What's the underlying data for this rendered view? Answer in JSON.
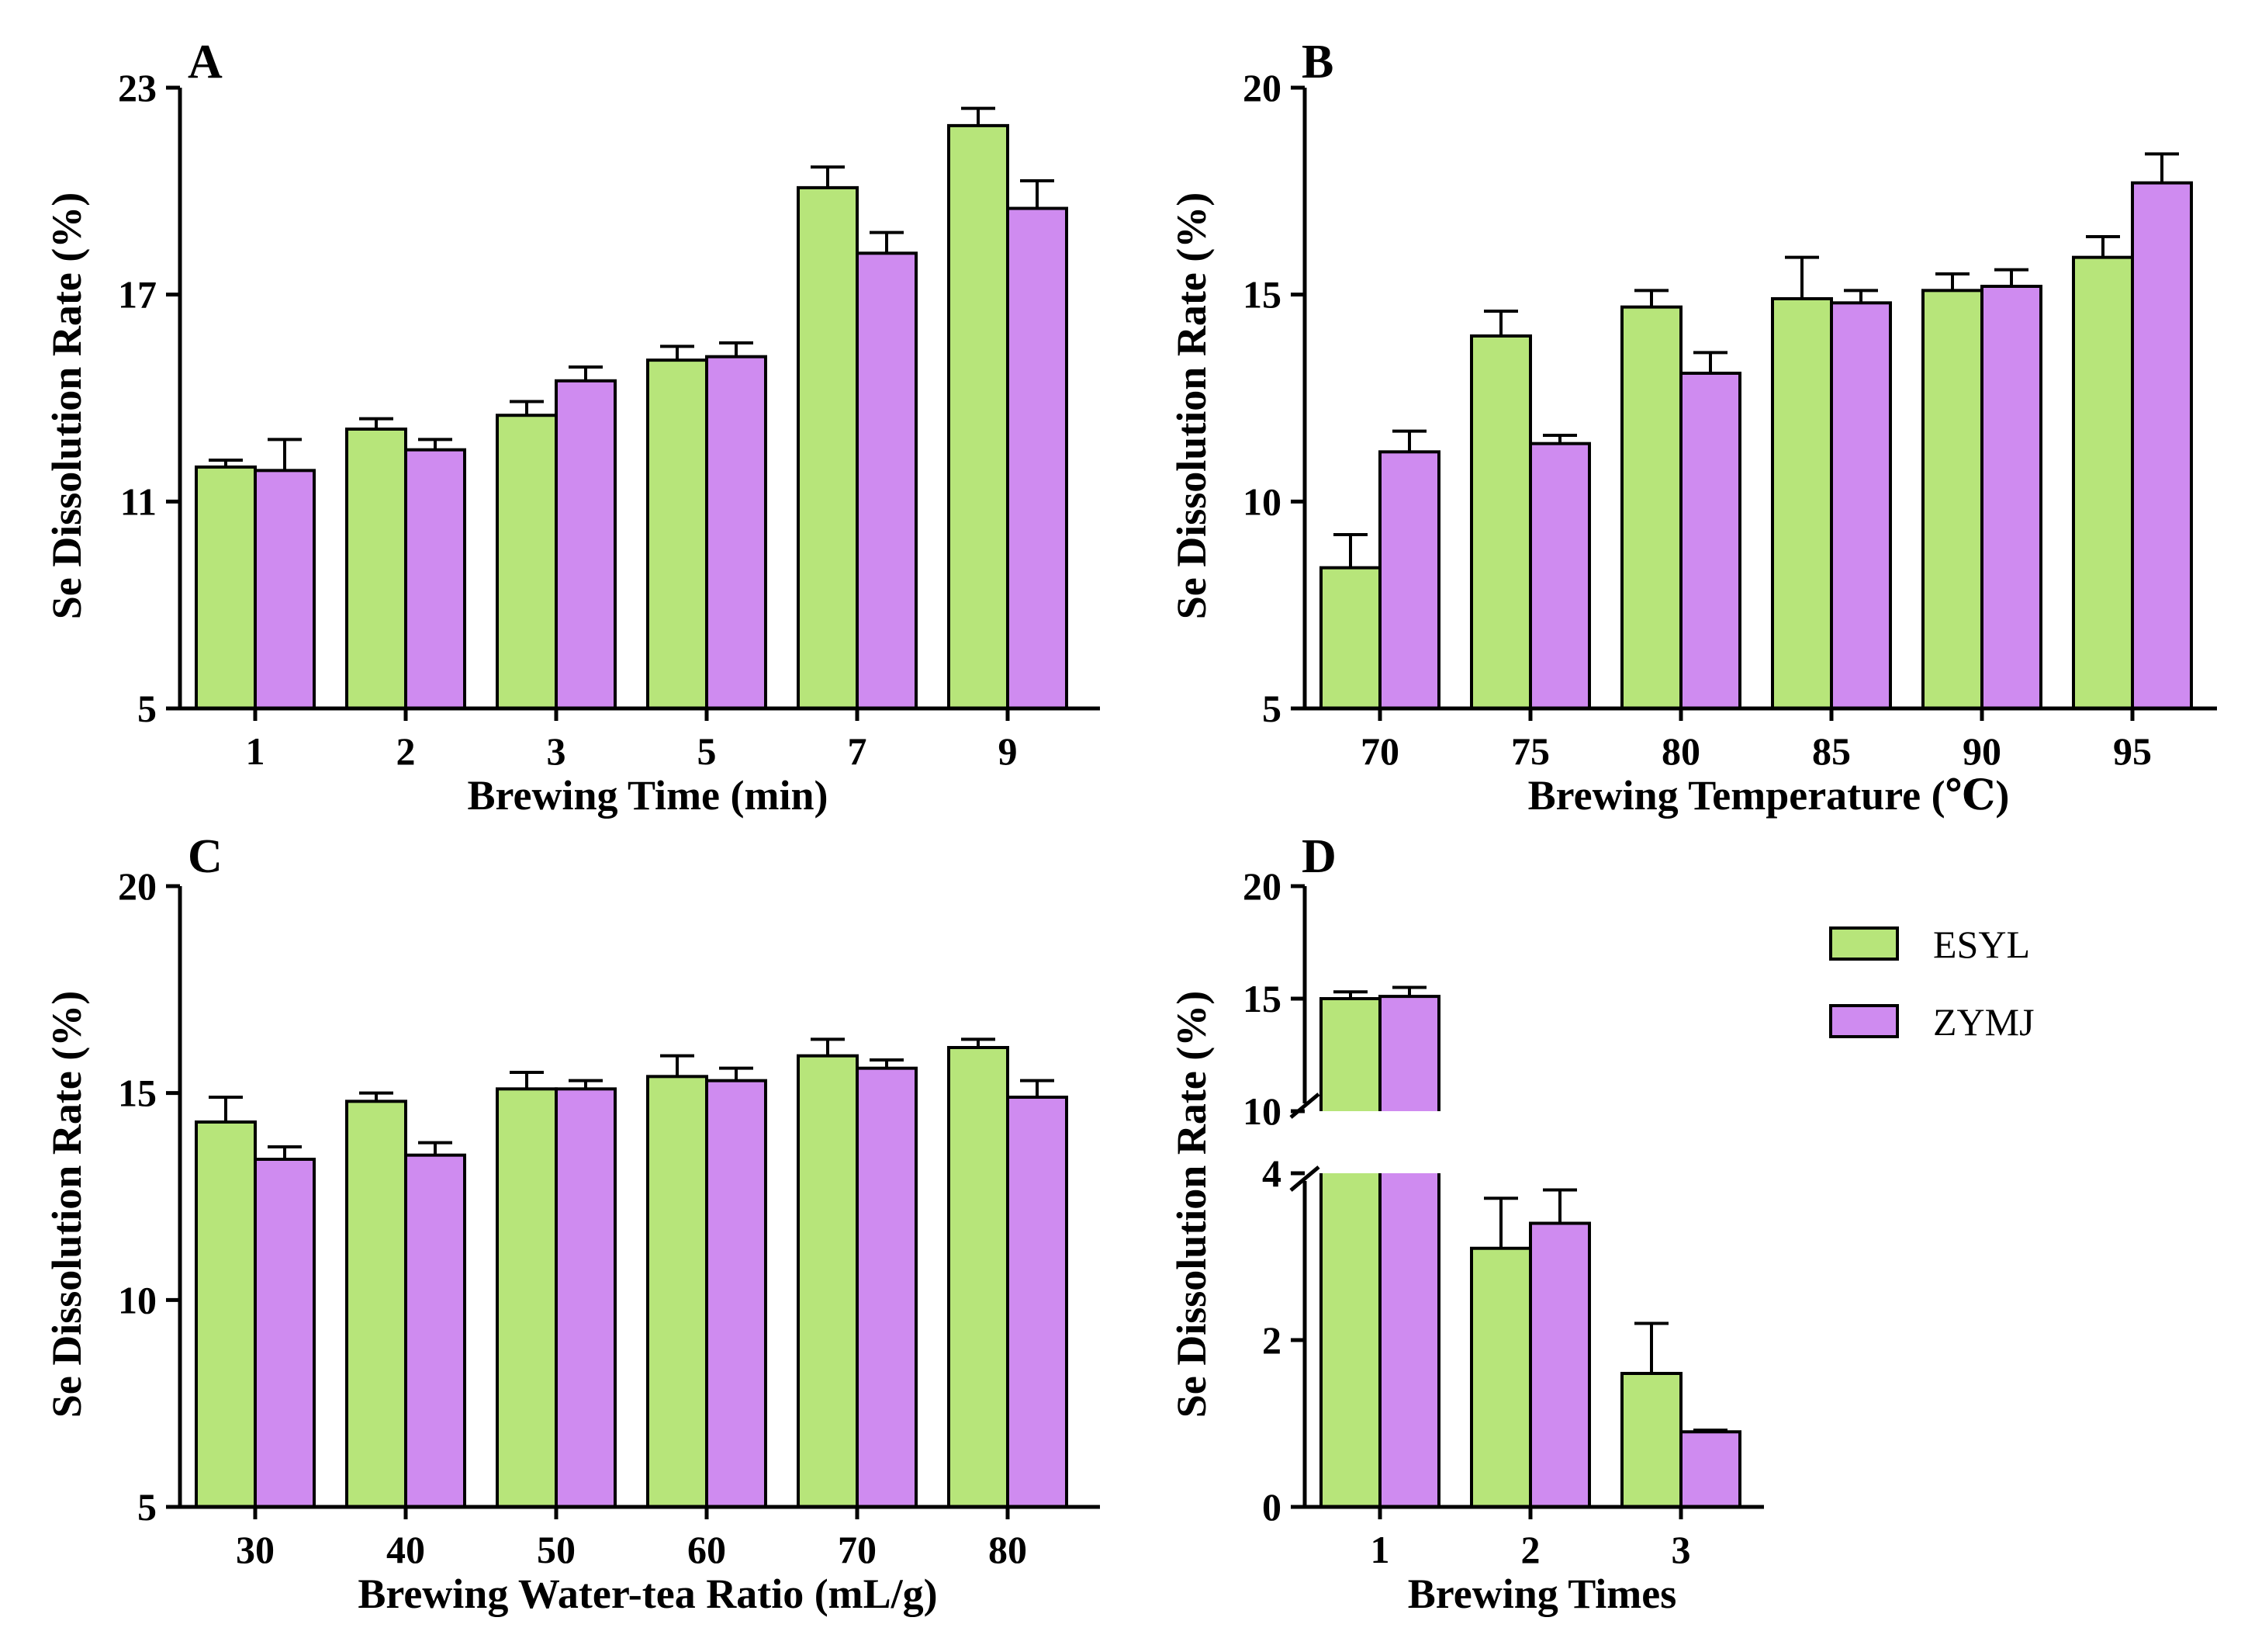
{
  "legend": [
    {
      "name": "ESYL",
      "color": "#b7e57a"
    },
    {
      "name": "ZYMJ",
      "color": "#cf8bf0"
    }
  ],
  "chart_data": [
    {
      "panel": "A",
      "type": "bar",
      "xlabel": "Brewing Time (min)",
      "ylabel": "Se Dissolution Rate (%)",
      "ylim": [
        5,
        23
      ],
      "yticks": [
        "5",
        "11",
        "17",
        "23"
      ],
      "categories": [
        "1",
        "2",
        "3",
        "5",
        "7",
        "9"
      ],
      "series": [
        {
          "name": "ESYL",
          "color": "#b7e57a",
          "values": [
            12.0,
            13.1,
            13.5,
            15.1,
            20.1,
            21.9
          ],
          "errors": [
            0.2,
            0.3,
            0.4,
            0.4,
            0.6,
            0.5
          ]
        },
        {
          "name": "ZYMJ",
          "color": "#cf8bf0",
          "values": [
            11.9,
            12.5,
            14.5,
            15.2,
            18.2,
            19.5
          ],
          "errors": [
            0.9,
            0.3,
            0.4,
            0.4,
            0.6,
            0.8
          ]
        }
      ]
    },
    {
      "panel": "B",
      "type": "bar",
      "xlabel": "Brewing Temperature (℃)",
      "ylabel": "Se Dissolution Rate (%)",
      "ylim": [
        5,
        20
      ],
      "yticks": [
        "5",
        "10",
        "15",
        "20"
      ],
      "categories": [
        "70",
        "75",
        "80",
        "85",
        "90",
        "95"
      ],
      "series": [
        {
          "name": "ESYL",
          "color": "#b7e57a",
          "values": [
            8.4,
            14.0,
            14.7,
            14.9,
            15.1,
            15.9
          ],
          "errors": [
            0.8,
            0.6,
            0.4,
            1.0,
            0.4,
            0.5
          ]
        },
        {
          "name": "ZYMJ",
          "color": "#cf8bf0",
          "values": [
            11.2,
            11.4,
            13.1,
            14.8,
            15.2,
            17.7
          ],
          "errors": [
            0.5,
            0.2,
            0.5,
            0.3,
            0.4,
            0.7
          ]
        }
      ]
    },
    {
      "panel": "C",
      "type": "bar",
      "xlabel": "Brewing Water-tea Ratio (mL/g)",
      "ylabel": "Se Dissolution Rate (%)",
      "ylim": [
        5,
        20
      ],
      "yticks": [
        "5",
        "10",
        "15",
        "20"
      ],
      "categories": [
        "30",
        "40",
        "50",
        "60",
        "70",
        "80"
      ],
      "series": [
        {
          "name": "ESYL",
          "color": "#b7e57a",
          "values": [
            14.3,
            14.8,
            15.1,
            15.4,
            15.9,
            16.1
          ],
          "errors": [
            0.6,
            0.2,
            0.4,
            0.5,
            0.4,
            0.2
          ]
        },
        {
          "name": "ZYMJ",
          "color": "#cf8bf0",
          "values": [
            13.4,
            13.5,
            15.1,
            15.3,
            15.6,
            14.9
          ],
          "errors": [
            0.3,
            0.3,
            0.2,
            0.3,
            0.2,
            0.4
          ]
        }
      ]
    },
    {
      "panel": "D",
      "type": "bar",
      "xlabel": "Brewing Times",
      "ylabel": "Se Dissolution Rate (%)",
      "ylim": [
        0,
        20
      ],
      "axis_break": [
        4,
        10
      ],
      "yticks": [
        "0",
        "2",
        "4",
        "10",
        "15",
        "20"
      ],
      "categories": [
        "1",
        "2",
        "3"
      ],
      "series": [
        {
          "name": "ESYL",
          "color": "#b7e57a",
          "values": [
            15.0,
            3.1,
            1.6
          ],
          "errors": [
            0.3,
            0.6,
            0.6
          ]
        },
        {
          "name": "ZYMJ",
          "color": "#cf8bf0",
          "values": [
            15.1,
            3.4,
            0.9
          ],
          "errors": [
            0.4,
            0.4,
            0.02
          ]
        }
      ]
    }
  ]
}
